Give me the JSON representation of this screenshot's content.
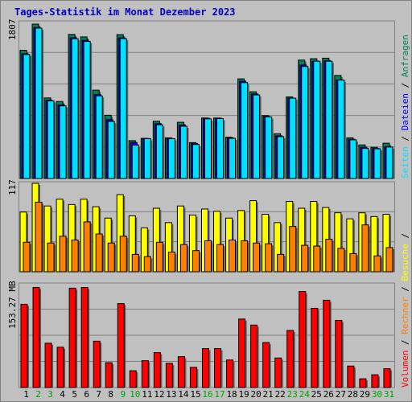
{
  "chart_data": [
    {
      "type": "bar",
      "title": "Tages-Statistik im Monat Dezember 2023",
      "ymax_label": "1807",
      "categories": [
        "1",
        "2",
        "3",
        "4",
        "5",
        "6",
        "7",
        "8",
        "9",
        "10",
        "11",
        "12",
        "13",
        "14",
        "15",
        "16",
        "17",
        "18",
        "19",
        "20",
        "21",
        "22",
        "23",
        "24",
        "25",
        "26",
        "27",
        "28",
        "29",
        "30",
        "31"
      ],
      "weekend_days": [
        "2",
        "3",
        "9",
        "10",
        "16",
        "17",
        "23",
        "24",
        "30",
        "31"
      ],
      "series": [
        {
          "name": "Anfragen",
          "values": [
            1500,
            1807,
            943,
            901,
            1686,
            1657,
            1034,
            740,
            1684,
            443,
            470,
            670,
            476,
            658,
            420,
            708,
            708,
            483,
            1166,
            1015,
            736,
            524,
            955,
            1386,
            1402,
            1408,
            1206,
            476,
            393,
            365,
            413
          ]
        },
        {
          "name": "Dateien",
          "values": [
            1460,
            1768,
            915,
            861,
            1647,
            1617,
            983,
            688,
            1646,
            422,
            468,
            642,
            467,
            624,
            410,
            705,
            705,
            474,
            1138,
            989,
            725,
            499,
            940,
            1328,
            1371,
            1379,
            1154,
            460,
            366,
            351,
            372
          ]
        },
        {
          "name": "Seiten",
          "values": [
            1451,
            1760,
            908,
            850,
            1635,
            1604,
            967,
            668,
            1637,
            390,
            466,
            628,
            466,
            612,
            398,
            698,
            701,
            470,
            1122,
            978,
            721,
            490,
            940,
            1311,
            1372,
            1372,
            1152,
            452,
            352,
            348,
            368
          ]
        }
      ]
    },
    {
      "type": "bar",
      "ymax_label": "117",
      "categories": [
        "1",
        "2",
        "3",
        "4",
        "5",
        "6",
        "7",
        "8",
        "9",
        "10",
        "11",
        "12",
        "13",
        "14",
        "15",
        "16",
        "17",
        "18",
        "19",
        "20",
        "21",
        "22",
        "23",
        "24",
        "25",
        "26",
        "27",
        "28",
        "29",
        "30",
        "31"
      ],
      "series": [
        {
          "name": "Besuche",
          "values": [
            79,
            117,
            87,
            96,
            89,
            96,
            86,
            71,
            102,
            74,
            58,
            84,
            65,
            87,
            75,
            83,
            80,
            71,
            81,
            94,
            76,
            65,
            93,
            84,
            93,
            85,
            78,
            70,
            78,
            73,
            76
          ]
        },
        {
          "name": "Rechner",
          "values": [
            39,
            92,
            38,
            47,
            42,
            66,
            50,
            38,
            47,
            23,
            20,
            39,
            26,
            36,
            28,
            41,
            36,
            42,
            41,
            38,
            37,
            23,
            60,
            35,
            34,
            43,
            31,
            24,
            62,
            21,
            32
          ]
        }
      ]
    },
    {
      "type": "bar",
      "ymax_label": "153.27 MB",
      "categories": [
        "1",
        "2",
        "3",
        "4",
        "5",
        "6",
        "7",
        "8",
        "9",
        "10",
        "11",
        "12",
        "13",
        "14",
        "15",
        "16",
        "17",
        "18",
        "19",
        "20",
        "21",
        "22",
        "23",
        "24",
        "25",
        "26",
        "27",
        "28",
        "29",
        "30",
        "31"
      ],
      "series": [
        {
          "name": "Volumen",
          "values": [
            124,
            149,
            66,
            60,
            148,
            149,
            69,
            37,
            125,
            25,
            40,
            52,
            36,
            46,
            30,
            58,
            58,
            41,
            102,
            93,
            67,
            44,
            85,
            143,
            118,
            130,
            100,
            32,
            13,
            19,
            28
          ]
        }
      ]
    }
  ],
  "legend": {
    "anfragen": "Anfragen",
    "dateien": "Dateien",
    "seiten": "Seiten",
    "besuche": "Besuche",
    "rechner": "Rechner",
    "volumen": "Volumen",
    "sep": " / "
  },
  "colors": {
    "background": "#c0c0c0",
    "title": "#0000c0",
    "anfragen": "#00805c",
    "dateien": "#0000ff",
    "seiten": "#00e0ff",
    "besuche": "#ffff00",
    "rechner": "#ff8000",
    "volumen": "#ff0000",
    "weekday": "#000000",
    "weekend": "#00a000"
  }
}
